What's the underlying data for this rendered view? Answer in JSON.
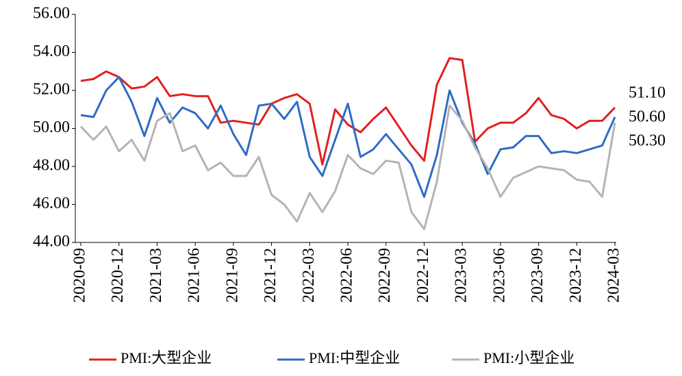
{
  "chart_data": {
    "type": "line",
    "categories": [
      "2020-09",
      null,
      null,
      "2020-12",
      null,
      null,
      "2021-03",
      null,
      null,
      "2021-06",
      null,
      null,
      "2021-09",
      null,
      null,
      "2021-12",
      null,
      null,
      "2022-03",
      null,
      null,
      "2022-06",
      null,
      null,
      "2022-09",
      null,
      null,
      "2022-12",
      null,
      null,
      "2023-03",
      null,
      null,
      "2023-06",
      null,
      null,
      "2023-09",
      null,
      null,
      "2023-12",
      null,
      null,
      "2024-03"
    ],
    "series": [
      {
        "name": "PMI:大型企业",
        "color": "#e0201f",
        "values": [
          52.5,
          52.6,
          53.0,
          52.7,
          52.1,
          52.2,
          52.7,
          51.7,
          51.8,
          51.7,
          51.7,
          50.3,
          50.4,
          50.3,
          50.2,
          51.3,
          51.6,
          51.8,
          51.3,
          48.1,
          51.0,
          50.2,
          49.8,
          50.5,
          51.1,
          50.1,
          49.1,
          48.3,
          52.3,
          53.7,
          53.6,
          49.3,
          50.0,
          50.3,
          50.3,
          50.8,
          51.6,
          50.7,
          50.5,
          50.0,
          50.4,
          50.4,
          51.1
        ],
        "value_labels": [
          null,
          null,
          null,
          null,
          null,
          null,
          null,
          null,
          null,
          null,
          null,
          null,
          null,
          null,
          null,
          null,
          null,
          null,
          null,
          null,
          null,
          null,
          null,
          null,
          null,
          null,
          null,
          null,
          null,
          null,
          null,
          null,
          null,
          null,
          null,
          null,
          null,
          null,
          null,
          null,
          null,
          null,
          "51.10"
        ]
      },
      {
        "name": "PMI:中型企业",
        "color": "#2e6bc6",
        "values": [
          50.7,
          50.6,
          52.0,
          52.7,
          51.4,
          49.6,
          51.6,
          50.3,
          51.1,
          50.8,
          50.0,
          51.2,
          49.7,
          48.6,
          51.2,
          51.3,
          50.5,
          51.4,
          48.5,
          47.5,
          49.4,
          51.3,
          48.5,
          48.9,
          49.7,
          48.9,
          48.1,
          46.4,
          48.6,
          52.0,
          50.3,
          49.2,
          47.6,
          48.9,
          49.0,
          49.6,
          49.6,
          48.7,
          48.8,
          48.7,
          48.9,
          49.1,
          50.6
        ],
        "value_labels": [
          null,
          null,
          null,
          null,
          null,
          null,
          null,
          null,
          null,
          null,
          null,
          null,
          null,
          null,
          null,
          null,
          null,
          null,
          null,
          null,
          null,
          null,
          null,
          null,
          null,
          null,
          null,
          null,
          null,
          null,
          null,
          null,
          null,
          null,
          null,
          null,
          null,
          null,
          null,
          null,
          null,
          null,
          "50.60"
        ]
      },
      {
        "name": "PMI:小型企业",
        "color": "#b4b4b4",
        "values": [
          50.1,
          49.4,
          50.1,
          48.8,
          49.4,
          48.3,
          50.4,
          50.8,
          48.8,
          49.1,
          47.8,
          48.2,
          47.5,
          47.5,
          48.5,
          46.5,
          46.0,
          45.1,
          46.6,
          45.6,
          46.7,
          48.6,
          47.9,
          47.6,
          48.3,
          48.2,
          45.6,
          44.7,
          47.2,
          51.2,
          50.4,
          49.0,
          47.9,
          46.4,
          47.4,
          47.7,
          48.0,
          47.9,
          47.8,
          47.3,
          47.2,
          46.4,
          50.3
        ],
        "value_labels": [
          null,
          null,
          null,
          null,
          null,
          null,
          null,
          null,
          null,
          null,
          null,
          null,
          null,
          null,
          null,
          null,
          null,
          null,
          null,
          null,
          null,
          null,
          null,
          null,
          null,
          null,
          null,
          null,
          null,
          null,
          null,
          null,
          null,
          null,
          null,
          null,
          null,
          null,
          null,
          null,
          null,
          null,
          "50.30"
        ]
      }
    ],
    "ylim": [
      44,
      56
    ],
    "yticks": [
      {
        "value": 44,
        "label": "44.00"
      },
      {
        "value": 46,
        "label": "46.00"
      },
      {
        "value": 48,
        "label": "48.00"
      },
      {
        "value": 50,
        "label": "50.00"
      },
      {
        "value": 52,
        "label": "52.00"
      },
      {
        "value": 54,
        "label": "54.00"
      },
      {
        "value": 56,
        "label": "56.00"
      }
    ],
    "grid": false
  }
}
